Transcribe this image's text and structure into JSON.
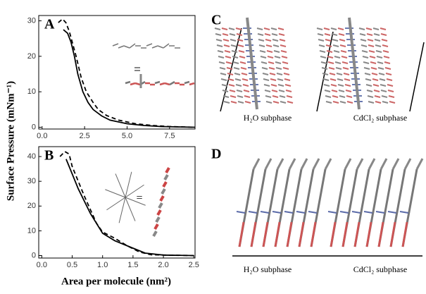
{
  "chart_data": [
    {
      "type": "line",
      "panel": "A",
      "xlim": [
        -0.2,
        9.0
      ],
      "ylim": [
        -0.5,
        31.5
      ],
      "xticks": [
        {
          "value": 0,
          "label": "0.0"
        },
        {
          "value": 2.5,
          "label": "2.5"
        },
        {
          "value": 5,
          "label": "5.0"
        },
        {
          "value": 7.5,
          "label": "7.5"
        }
      ],
      "yticks": [
        0,
        10,
        20,
        30
      ],
      "series": [
        {
          "style": "solid",
          "color": "#000000",
          "x": [
            1.25,
            1.5,
            1.7,
            1.9,
            2.1,
            2.4,
            2.7,
            3.0,
            3.5,
            4.0,
            5.0,
            6.0,
            7.0,
            8.0,
            9.0
          ],
          "values": [
            27.5,
            26.5,
            24,
            20,
            15,
            10,
            7,
            5,
            3.2,
            2,
            1,
            0.5,
            0.2,
            0.1,
            0
          ]
        },
        {
          "style": "dashed",
          "color": "#000000",
          "x": [
            0.95,
            1.2,
            1.4,
            1.6,
            1.8,
            2.0,
            2.3,
            2.6,
            3.0,
            3.3,
            3.8,
            4.5,
            5.5,
            6.5,
            7.5,
            9.0
          ],
          "values": [
            29.5,
            30.5,
            29.5,
            27,
            23.5,
            20,
            14,
            10,
            7,
            5,
            3.3,
            2,
            1,
            0.5,
            0.2,
            0
          ]
        }
      ]
    },
    {
      "type": "line",
      "panel": "B",
      "xlim": [
        -0.05,
        2.52
      ],
      "ylim": [
        -1,
        44
      ],
      "xticks": [
        {
          "value": 0,
          "label": "0.0"
        },
        {
          "value": 0.5,
          "label": "0.5"
        },
        {
          "value": 1,
          "label": "1.0"
        },
        {
          "value": 1.5,
          "label": "1.5"
        },
        {
          "value": 2,
          "label": "2.0"
        },
        {
          "value": 2.5,
          "label": "2.5"
        }
      ],
      "yticks": [
        0,
        10,
        20,
        30,
        40
      ],
      "series": [
        {
          "style": "solid",
          "color": "#000000",
          "x": [
            0.4,
            0.45,
            0.6,
            0.8,
            1.0,
            1.2,
            1.5,
            1.7,
            2.0,
            2.5
          ],
          "values": [
            39,
            36,
            27,
            17,
            9,
            6,
            3,
            1,
            0.2,
            0
          ]
        },
        {
          "style": "dashed",
          "color": "#000000",
          "x": [
            0.3,
            0.38,
            0.45,
            0.5,
            0.7,
            0.9,
            1.0,
            1.2,
            1.4,
            1.6,
            1.8,
            2.5
          ],
          "values": [
            40,
            42,
            41,
            36,
            24,
            13,
            9.5,
            7,
            4,
            1.5,
            0.3,
            0
          ]
        }
      ]
    }
  ],
  "shared_axes": {
    "ylabel": "Surface Pressure (mNm⁻¹)",
    "xlabel": "Area per molecule (nm²)"
  },
  "panels": {
    "C": {
      "label": "C",
      "captions": [
        "H₂O subphase",
        "CdCl₂ subphase"
      ]
    },
    "D": {
      "label": "D",
      "captions": [
        "H₂O subphase",
        "CdCl₂ subphase"
      ]
    }
  }
}
